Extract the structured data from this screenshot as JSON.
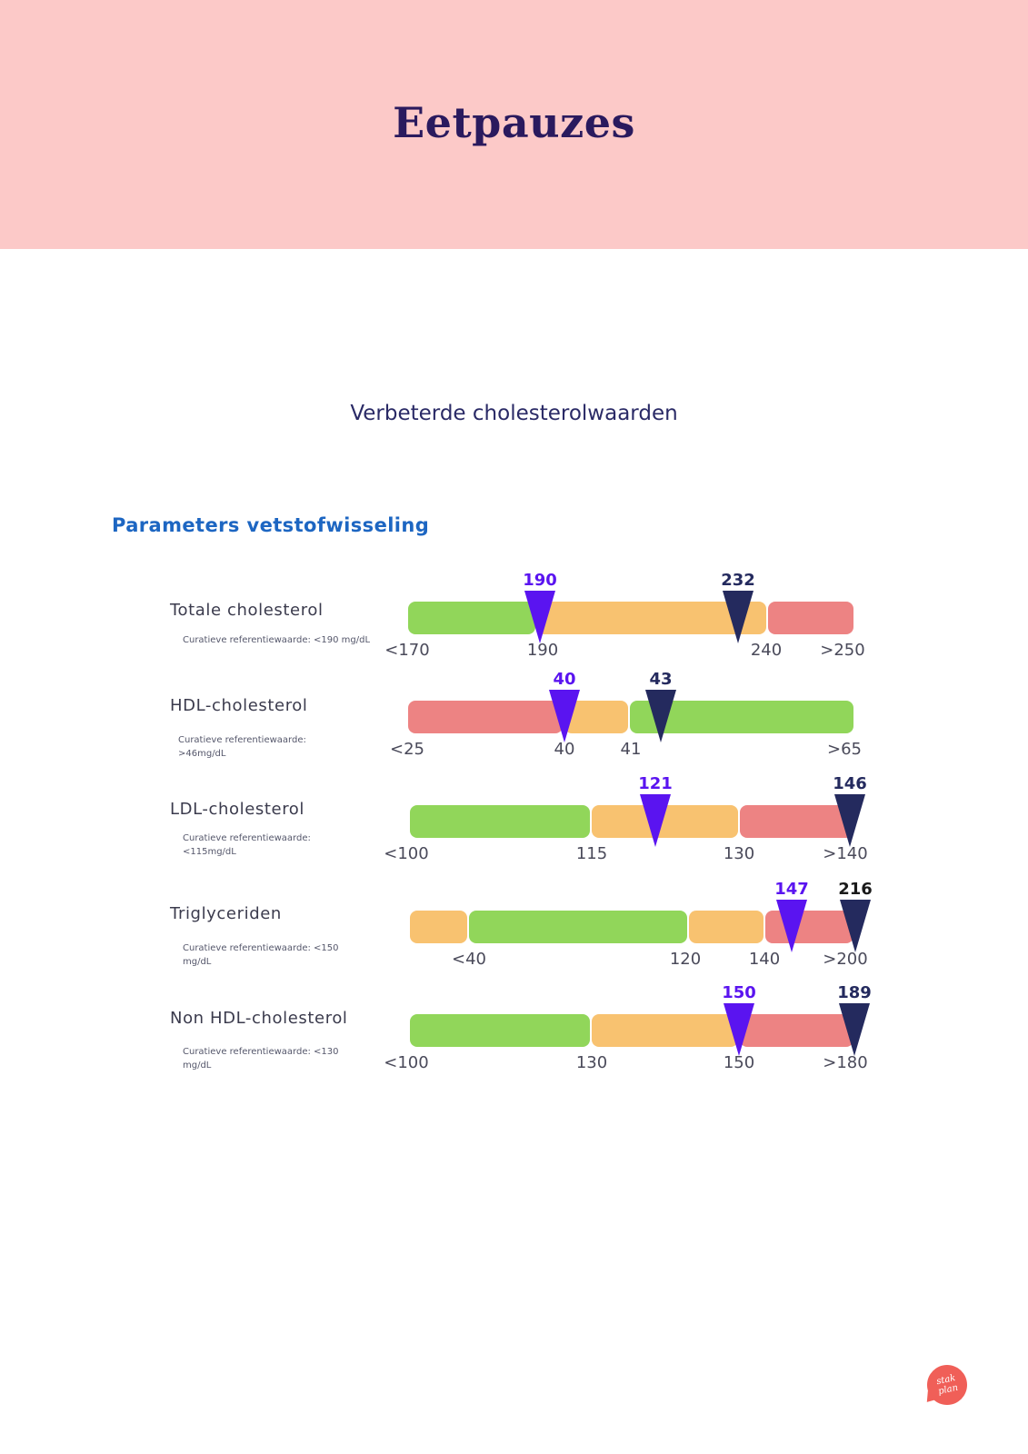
{
  "header": {
    "title": "Eetpauzes",
    "background": "#fcc9c8"
  },
  "subtitle": "Verbeterde cholesterolwaarden",
  "section_title": "Parameters vetstofwisseling",
  "colors": {
    "green": "#91d65a",
    "orange": "#f8c270",
    "red": "#ed8383",
    "before_marker": "#5a14f0",
    "after_marker": "#242a5e"
  },
  "logo": {
    "text_line1": "stak",
    "text_line2": "plan"
  },
  "chart_data": [
    {
      "type": "range-bar",
      "name": "Totale cholesterol",
      "reference": "Curatieve referentiewaarde: <190 mg/dL",
      "ticks": [
        "<170",
        "190",
        "240",
        ">250"
      ],
      "zones": [
        "green",
        "orange",
        "red"
      ],
      "markers": [
        {
          "label": "190",
          "value": 190,
          "kind": "before"
        },
        {
          "label": "232",
          "value": 232,
          "kind": "after"
        }
      ]
    },
    {
      "type": "range-bar",
      "name": "HDL-cholesterol",
      "reference": "Curatieve referentiewaarde: >46mg/dL",
      "ticks": [
        "<25",
        "40",
        "41",
        ">65"
      ],
      "zones": [
        "red",
        "orange",
        "green"
      ],
      "markers": [
        {
          "label": "40",
          "value": 40,
          "kind": "before"
        },
        {
          "label": "43",
          "value": 43,
          "kind": "after"
        }
      ]
    },
    {
      "type": "range-bar",
      "name": "LDL-cholesterol",
      "reference": "Curatieve referentiewaarde: <115mg/dL",
      "ticks": [
        "<100",
        "115",
        "130",
        ">140"
      ],
      "zones": [
        "green",
        "orange",
        "red"
      ],
      "markers": [
        {
          "label": "121",
          "value": 121,
          "kind": "before"
        },
        {
          "label": "146",
          "value": 146,
          "kind": "after"
        }
      ]
    },
    {
      "type": "range-bar",
      "name": "Triglyceriden",
      "reference": "Curatieve referentiewaarde: <150 mg/dL",
      "ticks": [
        "<40",
        "120",
        "140",
        ">200"
      ],
      "zones": [
        "orange",
        "green",
        "orange",
        "red"
      ],
      "markers": [
        {
          "label": "147",
          "value": 147,
          "kind": "before"
        },
        {
          "label": "216",
          "value": 216,
          "kind": "after"
        }
      ]
    },
    {
      "type": "range-bar",
      "name": "Non HDL-cholesterol",
      "reference": "Curatieve referentiewaarde: <130 mg/dL",
      "ticks": [
        "<100",
        "130",
        "150",
        ">180"
      ],
      "zones": [
        "green",
        "orange",
        "red"
      ],
      "markers": [
        {
          "label": "150",
          "value": 150,
          "kind": "before"
        },
        {
          "label": "189",
          "value": 189,
          "kind": "after"
        }
      ]
    }
  ]
}
